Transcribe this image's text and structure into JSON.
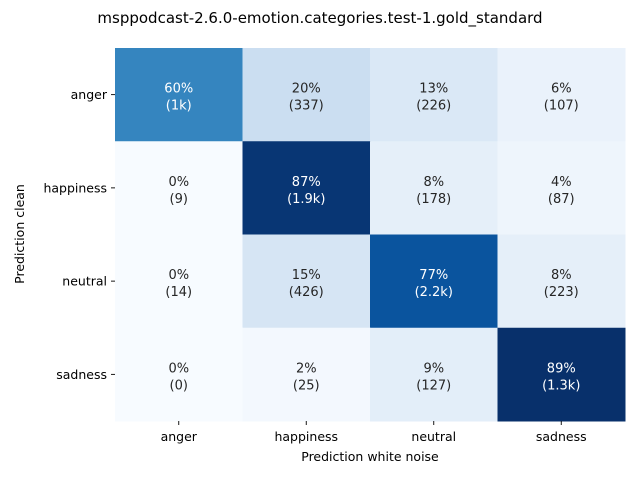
{
  "chart_data": {
    "type": "heatmap",
    "title": "msppodcast-2.6.0-emotion.categories.test-1.gold_standard",
    "xlabel": "Prediction white noise",
    "ylabel": "Prediction clean",
    "x_categories": [
      "anger",
      "happiness",
      "neutral",
      "sadness"
    ],
    "y_categories": [
      "anger",
      "happiness",
      "neutral",
      "sadness"
    ],
    "percent_values": [
      [
        60,
        20,
        13,
        6
      ],
      [
        0,
        87,
        8,
        4
      ],
      [
        0,
        15,
        77,
        8
      ],
      [
        0,
        2,
        9,
        89
      ]
    ],
    "cell_labels": [
      [
        {
          "pct": "60%",
          "count": "(1k)"
        },
        {
          "pct": "20%",
          "count": "(337)"
        },
        {
          "pct": "13%",
          "count": "(226)"
        },
        {
          "pct": "6%",
          "count": "(107)"
        }
      ],
      [
        {
          "pct": "0%",
          "count": "(9)"
        },
        {
          "pct": "87%",
          "count": "(1.9k)"
        },
        {
          "pct": "8%",
          "count": "(178)"
        },
        {
          "pct": "4%",
          "count": "(87)"
        }
      ],
      [
        {
          "pct": "0%",
          "count": "(14)"
        },
        {
          "pct": "15%",
          "count": "(426)"
        },
        {
          "pct": "77%",
          "count": "(2.2k)"
        },
        {
          "pct": "8%",
          "count": "(223)"
        }
      ],
      [
        {
          "pct": "0%",
          "count": "(0)"
        },
        {
          "pct": "2%",
          "count": "(25)"
        },
        {
          "pct": "9%",
          "count": "(127)"
        },
        {
          "pct": "89%",
          "count": "(1.3k)"
        }
      ]
    ],
    "colormap": "Blues",
    "colorbar": false,
    "grid": false
  }
}
